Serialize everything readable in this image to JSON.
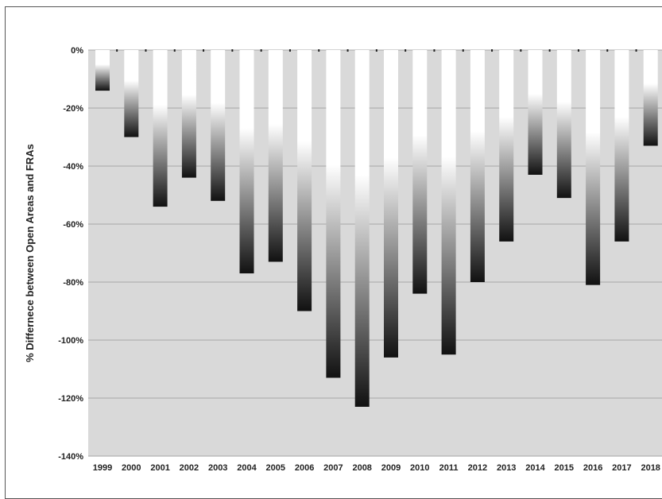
{
  "chart_data": {
    "type": "bar",
    "title": "",
    "xlabel": "",
    "ylabel": "% Differnece between Open Areas and FRAs",
    "categories": [
      "1999",
      "2000",
      "2001",
      "2002",
      "2003",
      "2004",
      "2005",
      "2006",
      "2007",
      "2008",
      "2009",
      "2010",
      "2011",
      "2012",
      "2013",
      "2014",
      "2015",
      "2016",
      "2017",
      "2018"
    ],
    "values": [
      -14,
      -30,
      -54,
      -44,
      -52,
      -77,
      -73,
      -90,
      -113,
      -123,
      -106,
      -84,
      -105,
      -80,
      -66,
      -43,
      -51,
      -81,
      -66,
      -33
    ],
    "ylim": [
      -140,
      0
    ],
    "yticks": [
      "0%",
      "-20%",
      "-40%",
      "-60%",
      "-80%",
      "-100%",
      "-120%",
      "-140%"
    ],
    "grid": true,
    "colors": {
      "plot_bg": "#d9d9d9",
      "grid": "#a6a6a6",
      "bar_top": "#ffffff",
      "bar_bottom": "#111111"
    }
  }
}
